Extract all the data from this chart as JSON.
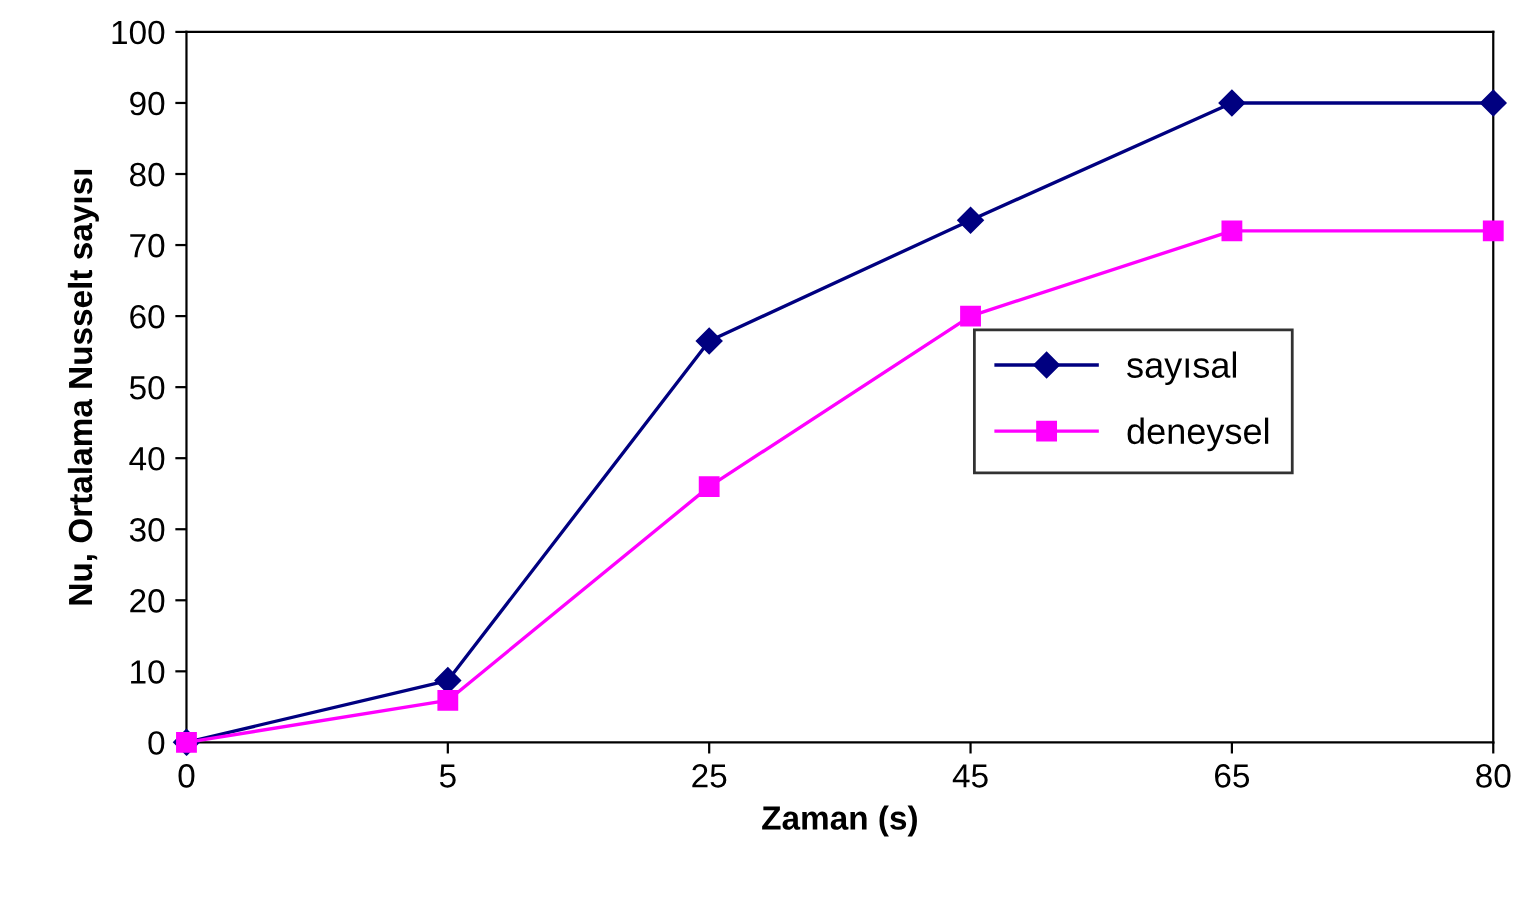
{
  "chart_data": {
    "type": "line",
    "xlabel": "Zaman (s)",
    "ylabel": "Nu, Ortalama Nusselt sayısı",
    "categories": [
      "0",
      "5",
      "25",
      "45",
      "65",
      "80"
    ],
    "series": [
      {
        "name": "sayısal",
        "color": "#000080",
        "marker": "diamond",
        "values": [
          0,
          8.7,
          56.5,
          73.5,
          90,
          90
        ]
      },
      {
        "name": "deneysel",
        "color": "#ff00ff",
        "marker": "square",
        "values": [
          0,
          5.9,
          36,
          60,
          72,
          72
        ]
      }
    ],
    "ylim": [
      0,
      100
    ],
    "yticks": [
      0,
      10,
      20,
      30,
      40,
      50,
      60,
      70,
      80,
      90,
      100
    ],
    "grid": false,
    "legend": "center right",
    "line_style": "solid"
  }
}
